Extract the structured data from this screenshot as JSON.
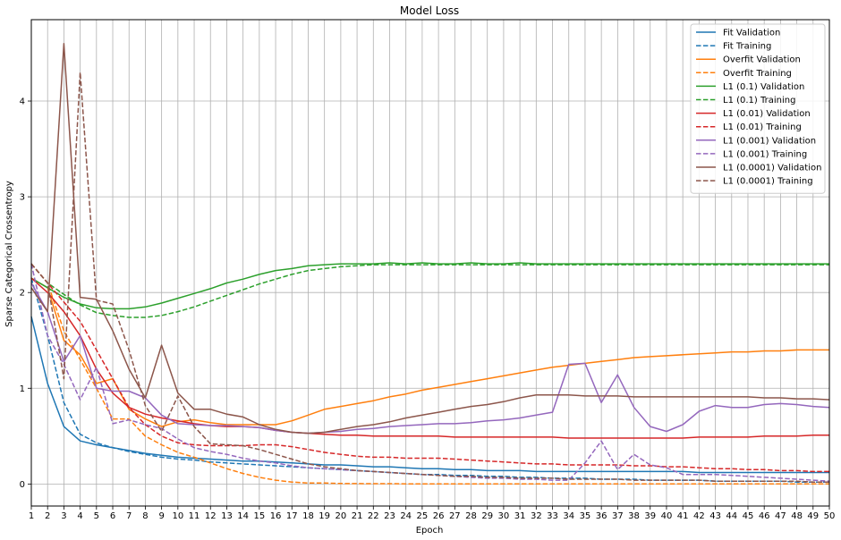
{
  "chart_data": {
    "type": "line",
    "title": "Model Loss",
    "xlabel": "Epoch",
    "ylabel": "Sparse Categorical Crossentropy",
    "xlim": [
      1,
      50
    ],
    "ylim": [
      -0.23,
      4.85
    ],
    "xticks": [
      1,
      2,
      3,
      4,
      5,
      6,
      7,
      8,
      9,
      10,
      11,
      12,
      13,
      14,
      15,
      16,
      17,
      18,
      19,
      20,
      21,
      22,
      23,
      24,
      25,
      26,
      27,
      28,
      29,
      30,
      31,
      32,
      33,
      34,
      35,
      36,
      37,
      38,
      39,
      40,
      41,
      42,
      43,
      44,
      45,
      46,
      47,
      48,
      49,
      50
    ],
    "yticks": [
      0,
      1,
      2,
      3,
      4
    ],
    "grid": true,
    "legend_position": "top-right",
    "colors": {
      "blue": "#1f77b4",
      "orange": "#ff7f0e",
      "green": "#2ca02c",
      "red": "#d62728",
      "purple": "#9467bd",
      "brown": "#8c564b"
    },
    "series": [
      {
        "name": "Fit Validation",
        "color": "#1f77b4",
        "dashed": false,
        "values": [
          1.75,
          1.05,
          0.6,
          0.45,
          0.41,
          0.38,
          0.35,
          0.32,
          0.3,
          0.28,
          0.27,
          0.26,
          0.25,
          0.24,
          0.24,
          0.23,
          0.22,
          0.21,
          0.2,
          0.2,
          0.19,
          0.18,
          0.18,
          0.17,
          0.16,
          0.16,
          0.15,
          0.15,
          0.14,
          0.14,
          0.14,
          0.13,
          0.13,
          0.13,
          0.13,
          0.13,
          0.13,
          0.13,
          0.13,
          0.13,
          0.13,
          0.12,
          0.12,
          0.12,
          0.12,
          0.12,
          0.12,
          0.12,
          0.12,
          0.12
        ]
      },
      {
        "name": "Fit Training",
        "color": "#1f77b4",
        "dashed": true,
        "values": [
          2.15,
          1.55,
          0.85,
          0.52,
          0.43,
          0.38,
          0.34,
          0.31,
          0.28,
          0.26,
          0.25,
          0.23,
          0.22,
          0.21,
          0.2,
          0.19,
          0.18,
          0.17,
          0.16,
          0.15,
          0.14,
          0.13,
          0.12,
          0.11,
          0.1,
          0.1,
          0.09,
          0.09,
          0.08,
          0.08,
          0.07,
          0.07,
          0.06,
          0.06,
          0.06,
          0.05,
          0.05,
          0.05,
          0.04,
          0.04,
          0.04,
          0.04,
          0.03,
          0.03,
          0.03,
          0.03,
          0.03,
          0.02,
          0.02,
          0.02
        ]
      },
      {
        "name": "Overfit Validation",
        "color": "#ff7f0e",
        "dashed": false,
        "values": [
          2.15,
          2.05,
          1.5,
          1.35,
          1.05,
          1.1,
          0.78,
          0.68,
          0.6,
          0.65,
          0.67,
          0.64,
          0.62,
          0.62,
          0.62,
          0.62,
          0.66,
          0.72,
          0.78,
          0.81,
          0.84,
          0.87,
          0.91,
          0.94,
          0.98,
          1.01,
          1.04,
          1.07,
          1.1,
          1.13,
          1.16,
          1.19,
          1.22,
          1.24,
          1.26,
          1.28,
          1.3,
          1.32,
          1.33,
          1.34,
          1.35,
          1.36,
          1.37,
          1.38,
          1.38,
          1.39,
          1.39,
          1.4,
          1.4,
          1.4
        ]
      },
      {
        "name": "Overfit Training",
        "color": "#ff7f0e",
        "dashed": true,
        "values": [
          2.3,
          2.1,
          1.6,
          1.3,
          1.0,
          0.68,
          0.68,
          0.5,
          0.41,
          0.33,
          0.28,
          0.22,
          0.16,
          0.11,
          0.07,
          0.04,
          0.02,
          0.01,
          0.01,
          0.005,
          0.004,
          0.003,
          0.003,
          0.002,
          0.002,
          0.002,
          0.002,
          0.001,
          0.001,
          0.001,
          0.001,
          0.001,
          0.001,
          0.001,
          0.001,
          0.001,
          0.001,
          0.001,
          0.001,
          0.001,
          0.001,
          0.001,
          0.001,
          0.001,
          0.001,
          0.001,
          0.001,
          0.001,
          0.001,
          0.001
        ]
      },
      {
        "name": "L1 (0.1) Validation",
        "color": "#2ca02c",
        "dashed": false,
        "values": [
          2.15,
          2.05,
          1.95,
          1.88,
          1.84,
          1.83,
          1.83,
          1.85,
          1.89,
          1.94,
          1.99,
          2.04,
          2.1,
          2.14,
          2.19,
          2.23,
          2.25,
          2.28,
          2.29,
          2.3,
          2.3,
          2.3,
          2.31,
          2.3,
          2.31,
          2.3,
          2.3,
          2.31,
          2.3,
          2.3,
          2.31,
          2.3,
          2.3,
          2.3,
          2.3,
          2.3,
          2.3,
          2.3,
          2.3,
          2.3,
          2.3,
          2.3,
          2.3,
          2.3,
          2.3,
          2.3,
          2.3,
          2.3,
          2.3,
          2.3
        ]
      },
      {
        "name": "L1 (0.1) Training",
        "color": "#2ca02c",
        "dashed": true,
        "values": [
          2.3,
          2.1,
          1.98,
          1.87,
          1.79,
          1.76,
          1.74,
          1.74,
          1.76,
          1.8,
          1.85,
          1.91,
          1.97,
          2.03,
          2.09,
          2.14,
          2.19,
          2.23,
          2.25,
          2.27,
          2.28,
          2.29,
          2.29,
          2.29,
          2.29,
          2.29,
          2.29,
          2.29,
          2.29,
          2.29,
          2.29,
          2.29,
          2.29,
          2.29,
          2.29,
          2.29,
          2.29,
          2.29,
          2.29,
          2.29,
          2.29,
          2.29,
          2.29,
          2.29,
          2.29,
          2.29,
          2.29,
          2.29,
          2.29,
          2.29
        ]
      },
      {
        "name": "L1 (0.01) Validation",
        "color": "#d62728",
        "dashed": false,
        "values": [
          2.15,
          2.0,
          1.8,
          1.55,
          1.2,
          0.95,
          0.8,
          0.73,
          0.69,
          0.66,
          0.63,
          0.61,
          0.6,
          0.6,
          0.59,
          0.56,
          0.54,
          0.53,
          0.52,
          0.51,
          0.51,
          0.5,
          0.5,
          0.5,
          0.5,
          0.5,
          0.49,
          0.49,
          0.49,
          0.49,
          0.49,
          0.49,
          0.49,
          0.48,
          0.48,
          0.48,
          0.48,
          0.48,
          0.48,
          0.48,
          0.48,
          0.49,
          0.49,
          0.49,
          0.49,
          0.5,
          0.5,
          0.5,
          0.51,
          0.51
        ]
      },
      {
        "name": "L1 (0.01) Training",
        "color": "#d62728",
        "dashed": true,
        "values": [
          2.3,
          2.1,
          1.9,
          1.7,
          1.4,
          1.1,
          0.8,
          0.62,
          0.5,
          0.43,
          0.41,
          0.4,
          0.4,
          0.4,
          0.41,
          0.41,
          0.39,
          0.36,
          0.33,
          0.31,
          0.29,
          0.28,
          0.28,
          0.27,
          0.27,
          0.27,
          0.26,
          0.25,
          0.24,
          0.23,
          0.22,
          0.21,
          0.21,
          0.2,
          0.2,
          0.2,
          0.2,
          0.19,
          0.19,
          0.18,
          0.18,
          0.17,
          0.16,
          0.16,
          0.15,
          0.15,
          0.14,
          0.14,
          0.13,
          0.13
        ]
      },
      {
        "name": "L1 (0.001) Validation",
        "color": "#9467bd",
        "dashed": false,
        "values": [
          2.1,
          1.8,
          1.28,
          1.55,
          1.0,
          0.97,
          0.97,
          0.9,
          0.72,
          0.63,
          0.62,
          0.61,
          0.61,
          0.6,
          0.59,
          0.56,
          0.54,
          0.53,
          0.54,
          0.55,
          0.57,
          0.58,
          0.6,
          0.61,
          0.62,
          0.63,
          0.63,
          0.64,
          0.66,
          0.67,
          0.69,
          0.72,
          0.75,
          1.25,
          1.26,
          0.85,
          1.14,
          0.8,
          0.6,
          0.55,
          0.62,
          0.76,
          0.82,
          0.8,
          0.8,
          0.83,
          0.84,
          0.83,
          0.81,
          0.8
        ]
      },
      {
        "name": "L1 (0.001) Training",
        "color": "#9467bd",
        "dashed": true,
        "values": [
          2.3,
          1.55,
          1.25,
          0.88,
          1.22,
          0.63,
          0.67,
          0.62,
          0.58,
          0.47,
          0.38,
          0.34,
          0.31,
          0.27,
          0.24,
          0.22,
          0.19,
          0.17,
          0.16,
          0.15,
          0.14,
          0.13,
          0.12,
          0.11,
          0.1,
          0.09,
          0.08,
          0.07,
          0.06,
          0.06,
          0.05,
          0.05,
          0.04,
          0.04,
          0.22,
          0.45,
          0.15,
          0.31,
          0.2,
          0.17,
          0.1,
          0.1,
          0.1,
          0.09,
          0.08,
          0.07,
          0.06,
          0.05,
          0.04,
          0.03
        ]
      },
      {
        "name": "L1 (0.0001) Validation",
        "color": "#8c564b",
        "dashed": false,
        "values": [
          2.05,
          1.8,
          4.6,
          1.95,
          1.93,
          1.6,
          1.2,
          0.9,
          1.45,
          0.95,
          0.78,
          0.78,
          0.73,
          0.7,
          0.62,
          0.57,
          0.54,
          0.53,
          0.54,
          0.57,
          0.6,
          0.62,
          0.65,
          0.69,
          0.72,
          0.75,
          0.78,
          0.81,
          0.83,
          0.86,
          0.9,
          0.93,
          0.93,
          0.93,
          0.92,
          0.92,
          0.92,
          0.91,
          0.91,
          0.91,
          0.91,
          0.91,
          0.91,
          0.91,
          0.91,
          0.9,
          0.9,
          0.89,
          0.89,
          0.88
        ]
      },
      {
        "name": "L1 (0.0001) Training",
        "color": "#8c564b",
        "dashed": true,
        "values": [
          2.3,
          2.1,
          1.1,
          4.3,
          1.92,
          1.88,
          1.4,
          0.82,
          0.55,
          0.92,
          0.6,
          0.42,
          0.41,
          0.4,
          0.36,
          0.31,
          0.26,
          0.21,
          0.18,
          0.16,
          0.14,
          0.13,
          0.12,
          0.11,
          0.1,
          0.09,
          0.08,
          0.08,
          0.07,
          0.07,
          0.06,
          0.06,
          0.06,
          0.05,
          0.05,
          0.05,
          0.05,
          0.04,
          0.04,
          0.04,
          0.04,
          0.04,
          0.03,
          0.03,
          0.03,
          0.03,
          0.03,
          0.03,
          0.02,
          0.02
        ]
      }
    ]
  }
}
